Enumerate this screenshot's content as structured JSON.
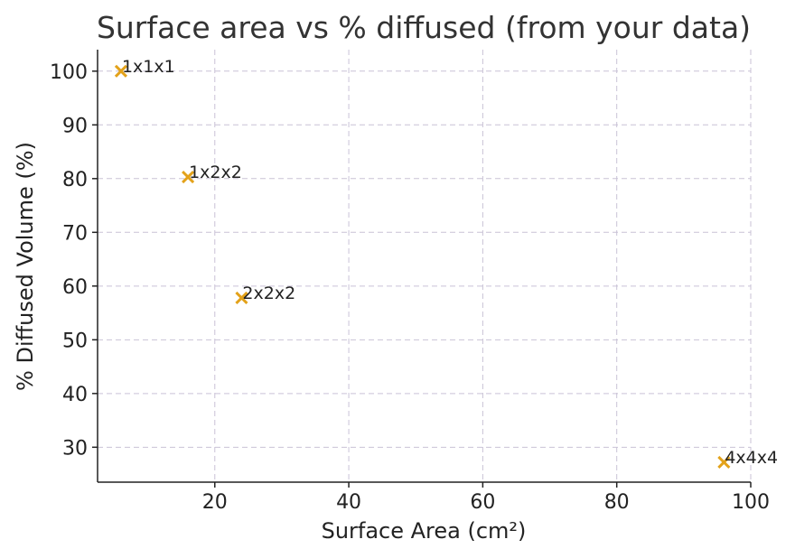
{
  "chart_data": {
    "type": "scatter",
    "title": "Surface area vs % diffused (from your data)",
    "xlabel": "Surface Area (cm²)",
    "ylabel": "% Diffused Volume (%)",
    "xlim": [
      2.5,
      100
    ],
    "ylim": [
      23.5,
      104
    ],
    "xticks": [
      20,
      40,
      60,
      80,
      100
    ],
    "yticks": [
      30,
      40,
      50,
      60,
      70,
      80,
      90,
      100
    ],
    "grid": true,
    "marker_color": "#E3A21A",
    "points": [
      {
        "label": "1x1x1",
        "x": 6,
        "y": 100
      },
      {
        "label": "1x2x2",
        "x": 16,
        "y": 80.3
      },
      {
        "label": "2x2x2",
        "x": 24,
        "y": 57.8
      },
      {
        "label": "4x4x4",
        "x": 96,
        "y": 27.2
      }
    ]
  }
}
